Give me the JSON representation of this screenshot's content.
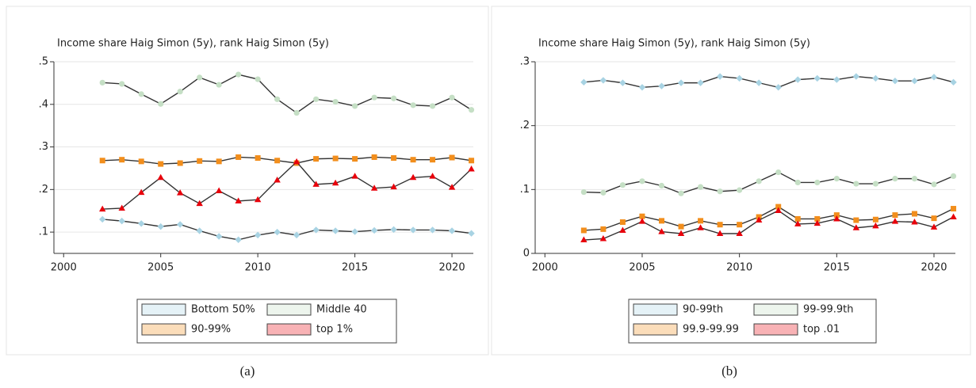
{
  "chart_data": [
    {
      "type": "line",
      "title": "Income share Haig Simon (5y), rank Haig Simon (5y)",
      "x": [
        2002,
        2003,
        2004,
        2005,
        2006,
        2007,
        2008,
        2009,
        2010,
        2011,
        2012,
        2013,
        2014,
        2015,
        2016,
        2017,
        2018,
        2019,
        2020,
        2021
      ],
      "xlim": [
        1999.5,
        2021.1
      ],
      "xticks": [
        2000,
        2005,
        2010,
        2015,
        2020
      ],
      "ylim": [
        0.05,
        0.5
      ],
      "yticks": [
        {
          "value": 0.1,
          "label": ".1"
        },
        {
          "value": 0.2,
          "label": ".2"
        },
        {
          "value": 0.3,
          "label": ".3"
        },
        {
          "value": 0.4,
          "label": ".4"
        },
        {
          "value": 0.5,
          "label": ".5"
        }
      ],
      "grid": true,
      "series": [
        {
          "name": "Bottom 50%",
          "color": "#a8d3e3",
          "marker": "diamond",
          "values": [
            0.13,
            0.126,
            0.12,
            0.113,
            0.118,
            0.103,
            0.09,
            0.082,
            0.093,
            0.1,
            0.093,
            0.105,
            0.103,
            0.101,
            0.104,
            0.106,
            0.105,
            0.105,
            0.103,
            0.097
          ]
        },
        {
          "name": "Middle 40",
          "color": "#c5dfc5",
          "marker": "circle",
          "values": [
            0.451,
            0.448,
            0.424,
            0.401,
            0.43,
            0.463,
            0.446,
            0.47,
            0.459,
            0.412,
            0.38,
            0.412,
            0.406,
            0.396,
            0.416,
            0.414,
            0.398,
            0.396,
            0.416,
            0.387
          ]
        },
        {
          "name": "90-99%",
          "color": "#f28e1c",
          "marker": "square",
          "values": [
            0.268,
            0.27,
            0.266,
            0.26,
            0.262,
            0.267,
            0.266,
            0.276,
            0.274,
            0.268,
            0.262,
            0.272,
            0.273,
            0.272,
            0.276,
            0.274,
            0.27,
            0.27,
            0.275,
            0.268
          ]
        },
        {
          "name": "top 1%",
          "color": "#e8000b",
          "marker": "triangle",
          "values": [
            0.154,
            0.156,
            0.193,
            0.228,
            0.192,
            0.167,
            0.197,
            0.173,
            0.176,
            0.222,
            0.265,
            0.212,
            0.215,
            0.231,
            0.203,
            0.206,
            0.228,
            0.231,
            0.205,
            0.248
          ]
        }
      ]
    },
    {
      "type": "line",
      "title": "Income share Haig Simon (5y), rank Haig Simon (5y)",
      "x": [
        2002,
        2003,
        2004,
        2005,
        2006,
        2007,
        2008,
        2009,
        2010,
        2011,
        2012,
        2013,
        2014,
        2015,
        2016,
        2017,
        2018,
        2019,
        2020,
        2021
      ],
      "xlim": [
        1999.5,
        2021.1
      ],
      "xticks": [
        2000,
        2005,
        2010,
        2015,
        2020
      ],
      "ylim": [
        0,
        0.3
      ],
      "yticks": [
        0,
        {
          "value": 0.1,
          "label": ".1"
        },
        {
          "value": 0.2,
          "label": ".2"
        },
        {
          "value": 0.3,
          "label": ".3"
        }
      ],
      "grid": true,
      "series": [
        {
          "name": "90-99th",
          "color": "#a8d3e3",
          "marker": "diamond",
          "values": [
            0.268,
            0.271,
            0.267,
            0.26,
            0.262,
            0.267,
            0.267,
            0.277,
            0.274,
            0.267,
            0.26,
            0.272,
            0.274,
            0.272,
            0.277,
            0.274,
            0.27,
            0.27,
            0.276,
            0.268
          ]
        },
        {
          "name": "99-99.9th",
          "color": "#c5dfc5",
          "marker": "circle",
          "values": [
            0.096,
            0.095,
            0.107,
            0.113,
            0.106,
            0.094,
            0.104,
            0.097,
            0.099,
            0.113,
            0.127,
            0.111,
            0.111,
            0.117,
            0.109,
            0.109,
            0.117,
            0.117,
            0.108,
            0.121
          ]
        },
        {
          "name": "99.9-99.99",
          "color": "#f28e1c",
          "marker": "square",
          "values": [
            0.036,
            0.038,
            0.049,
            0.058,
            0.051,
            0.042,
            0.051,
            0.045,
            0.045,
            0.057,
            0.073,
            0.054,
            0.054,
            0.06,
            0.052,
            0.053,
            0.06,
            0.062,
            0.055,
            0.07
          ]
        },
        {
          "name": "top .01",
          "color": "#e8000b",
          "marker": "triangle",
          "values": [
            0.021,
            0.023,
            0.036,
            0.05,
            0.034,
            0.031,
            0.04,
            0.031,
            0.031,
            0.052,
            0.067,
            0.046,
            0.047,
            0.054,
            0.04,
            0.043,
            0.05,
            0.049,
            0.041,
            0.057
          ]
        }
      ]
    }
  ],
  "captions": [
    "(a)",
    "(b)"
  ]
}
